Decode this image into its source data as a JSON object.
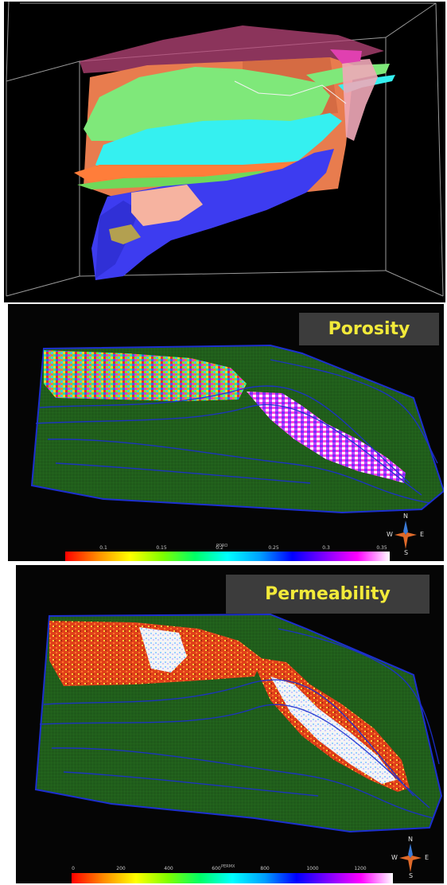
{
  "panels": {
    "porosity": {
      "title": "Porosity",
      "colorbar_label": "PORO",
      "ticks": [
        "0.1",
        "0.15",
        "0.2",
        "0.25",
        "0.3",
        "0.35"
      ]
    },
    "permeability": {
      "title": "Permeability",
      "colorbar_label": "PERMX",
      "ticks": [
        "0",
        "200",
        "400",
        "600",
        "800",
        "1000",
        "1200"
      ]
    }
  },
  "compass": {
    "n": "N",
    "s": "S",
    "e": "E",
    "w": "W"
  },
  "colors": {
    "title_text": "#f2ea3a",
    "title_bg": "#3c3c3c",
    "grid_green": "#1f5a1a",
    "grid_blue": "#1c2fd0"
  }
}
